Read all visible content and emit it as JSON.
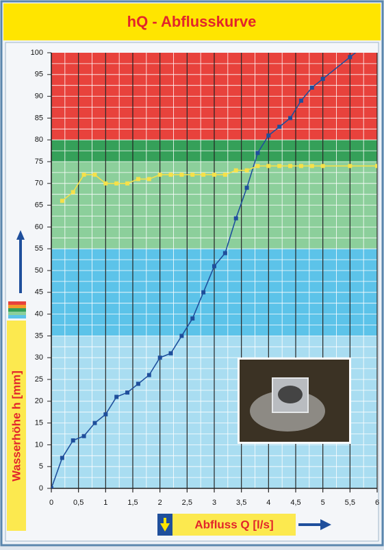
{
  "chart_data": {
    "type": "line",
    "title": "hQ - Abflusskurve",
    "x_label": "Abfluss Q [l/s]",
    "y_label": "Wasserhöhe h [mm]",
    "xlim": [
      0,
      6
    ],
    "ylim": [
      0,
      100
    ],
    "xticks": [
      0,
      {
        "value": 0.5,
        "label": "0,5"
      },
      1,
      {
        "value": 1.5,
        "label": "1,5"
      },
      2,
      {
        "value": 2.5,
        "label": "2,5"
      },
      3,
      {
        "value": 3.5,
        "label": "3,5"
      },
      4,
      {
        "value": 4.5,
        "label": "4,5"
      },
      5,
      {
        "value": 5.5,
        "label": "5,5"
      },
      6
    ],
    "yticks": [
      0,
      5,
      10,
      15,
      20,
      25,
      30,
      35,
      40,
      45,
      50,
      55,
      60,
      65,
      70,
      75,
      80,
      85,
      90,
      95,
      100
    ],
    "minor_grid": {
      "x": 0.25,
      "y": 2.5
    },
    "bands": [
      {
        "from": 80,
        "to": 100,
        "color": "#e8423c"
      },
      {
        "from": 75,
        "to": 80,
        "color": "#35a059"
      },
      {
        "from": 55,
        "to": 75,
        "color": "#8ccf9b"
      },
      {
        "from": 35,
        "to": 55,
        "color": "#5cc3e9"
      },
      {
        "from": 0,
        "to": 35,
        "color": "#a9ddf1"
      }
    ],
    "series": [
      {
        "color": "#1f4f9c",
        "x": [
          0,
          0.2,
          0.4,
          0.6,
          0.8,
          1.0,
          1.2,
          1.4,
          1.6,
          1.8,
          2.0,
          2.2,
          2.4,
          2.6,
          2.8,
          3.0,
          3.2,
          3.4,
          3.6,
          3.8,
          4.0,
          4.2,
          4.4,
          4.6,
          4.8,
          5.0,
          5.5,
          5.8
        ],
        "values": [
          0,
          7,
          11,
          12,
          15,
          17,
          21,
          22,
          24,
          26,
          30,
          31,
          35,
          39,
          45,
          51,
          54,
          62,
          69,
          77,
          81,
          83,
          85,
          89,
          92,
          94,
          99,
          102
        ]
      },
      {
        "color": "#f5e14a",
        "x": [
          0.2,
          0.4,
          0.6,
          0.8,
          1.0,
          1.2,
          1.4,
          1.6,
          1.8,
          2.0,
          2.2,
          2.4,
          2.6,
          2.8,
          3.0,
          3.2,
          3.4,
          3.6,
          3.8,
          4.0,
          4.2,
          4.4,
          4.6,
          4.8,
          5.0,
          5.5,
          6.0
        ],
        "values": [
          66,
          68,
          72,
          72,
          70,
          70,
          70,
          71,
          71,
          72,
          72,
          72,
          72,
          72,
          72,
          72,
          73,
          73,
          74,
          74,
          74,
          74,
          74,
          74,
          74,
          74,
          74
        ]
      }
    ]
  }
}
